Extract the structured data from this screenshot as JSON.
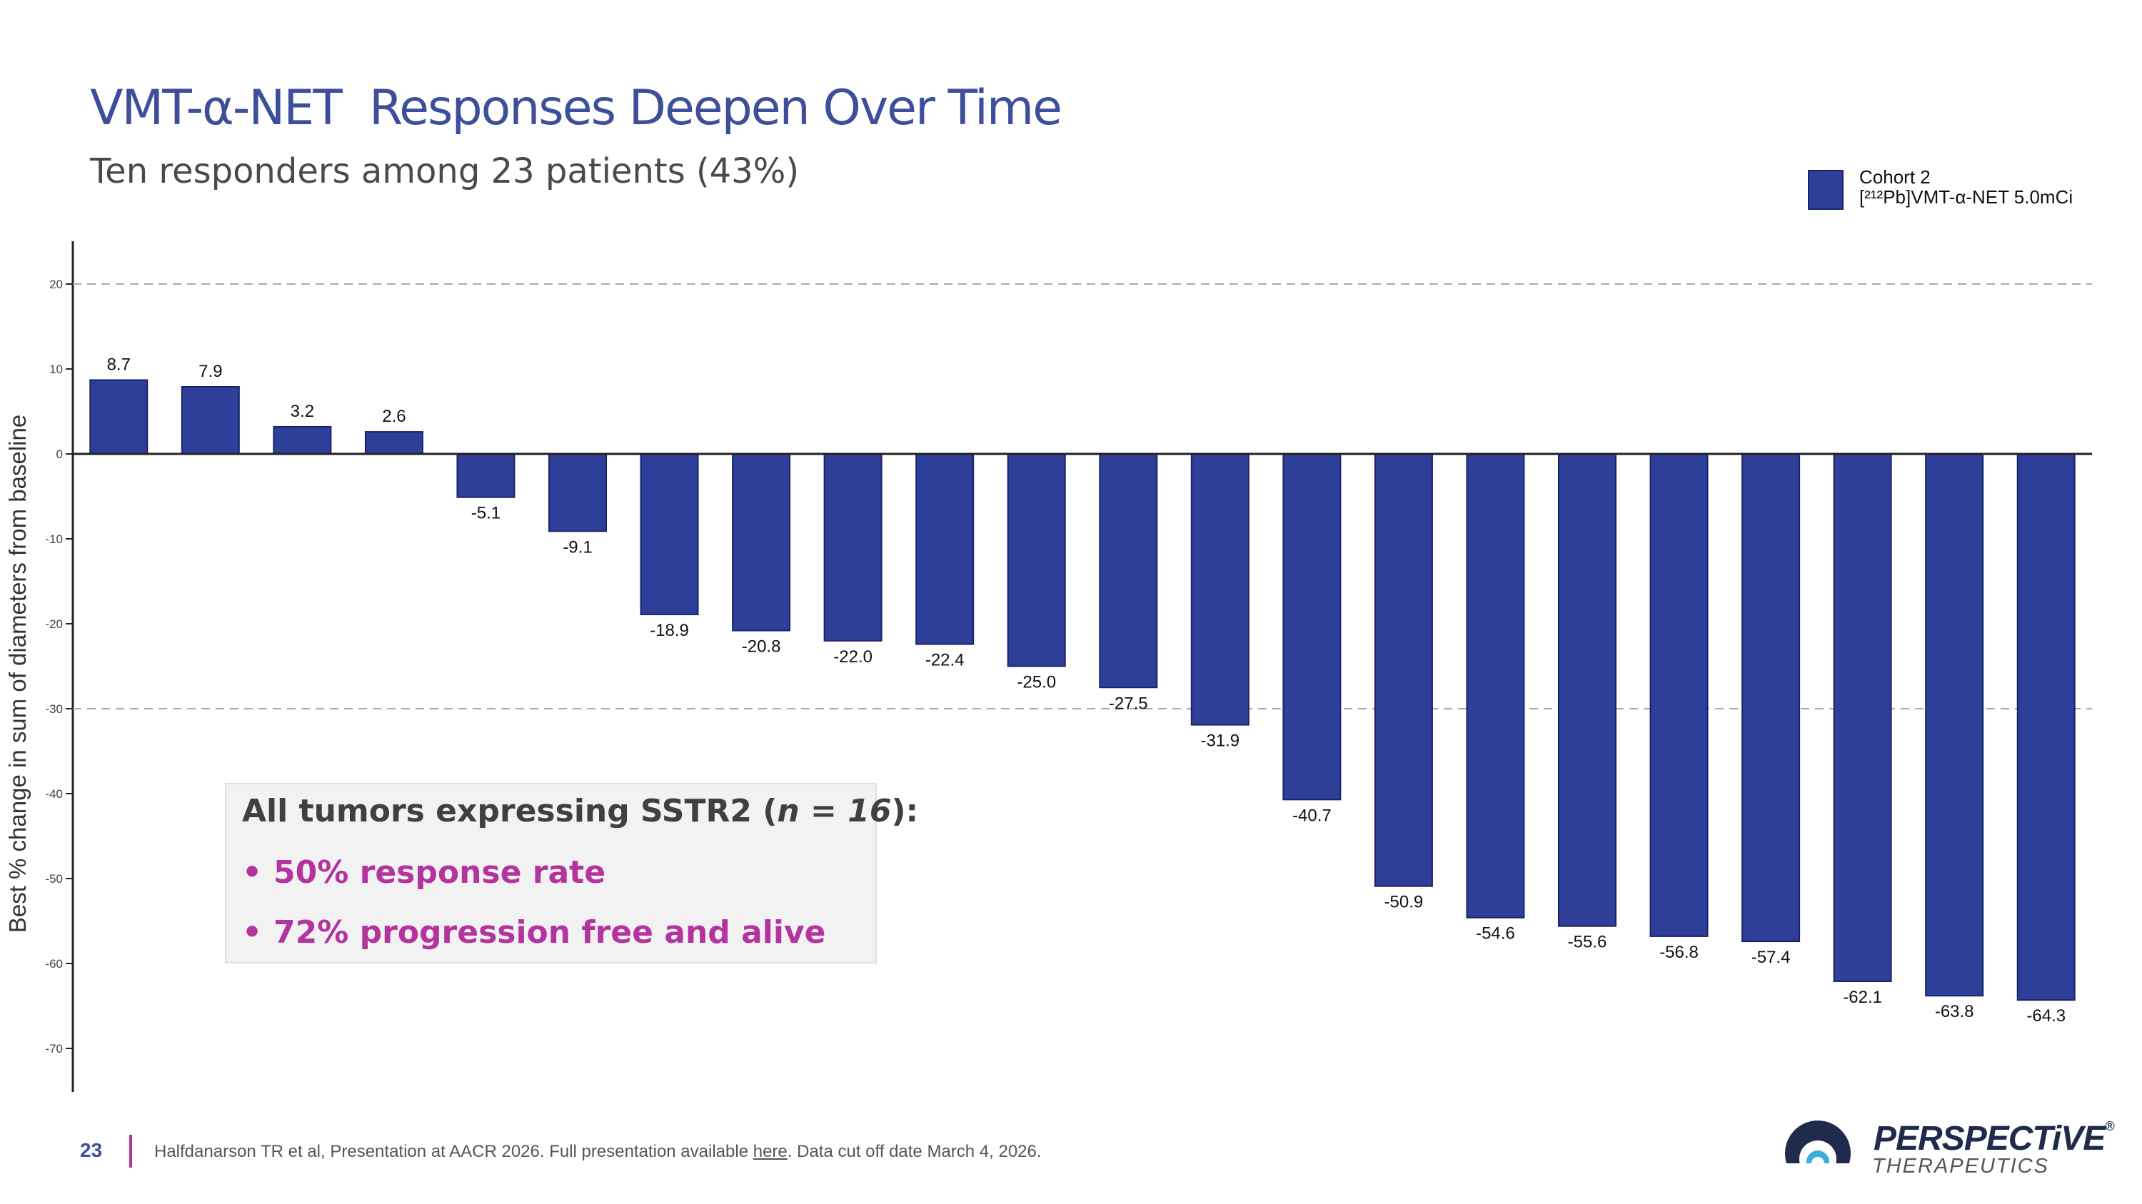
{
  "header": {
    "title": "VMT-α-NET  Responses Deepen Over Time",
    "subtitle": "Ten responders among 23 patients (43%)"
  },
  "legend": {
    "line1": "Cohort 2",
    "line2": "[²¹²Pb]VMT-α-NET 5.0mCi",
    "color": "#2e3f9a"
  },
  "callout": {
    "heading_prefix": "All tumors expressing SSTR2 (",
    "heading_n": "n = 16",
    "heading_suffix": "):",
    "bullet": "•",
    "items": [
      "50% response rate",
      "72% progression free and alive"
    ],
    "heading_color": "#404040",
    "item_color": "#b3339f"
  },
  "footer": {
    "page_number": "23",
    "citation_prefix": "Halfdanarson TR et al, Presentation at AACR 2026. Full presentation available ",
    "citation_link": "here",
    "citation_suffix": ". Data cut off date March 4, 2026."
  },
  "logo": {
    "name": "PERSPECTiVE",
    "reg": "®",
    "sub": "THERAPEUTICS"
  },
  "chart_data": {
    "type": "bar",
    "title": "",
    "xlabel": "",
    "ylabel": "Best % change in sum of diameters from baseline",
    "ylim": [
      -70,
      20
    ],
    "yticks": [
      20,
      10,
      0,
      -10,
      -20,
      -30,
      -40,
      -50,
      -60,
      -70
    ],
    "reference_lines": [
      20,
      -30
    ],
    "grid": false,
    "legend_position": "top-right",
    "series": [
      {
        "name": "Cohort 2 [²¹²Pb]VMT-α-NET 5.0mCi",
        "color": "#2e3f9a",
        "values": [
          8.7,
          7.9,
          3.2,
          2.6,
          -5.1,
          -9.1,
          -18.9,
          -20.8,
          -22.0,
          -22.4,
          -25.0,
          -27.5,
          -31.9,
          -40.7,
          -50.9,
          -54.6,
          -55.6,
          -56.8,
          -57.4,
          -62.1,
          -63.8,
          -64.3
        ]
      }
    ],
    "data_labels": [
      "8.7",
      "7.9",
      "3.2",
      "2.6",
      "-5.1",
      "-9.1",
      "-18.9",
      "-20.8",
      "-22.0",
      "-22.4",
      "-25.0",
      "-27.5",
      "-31.9",
      "-40.7",
      "-50.9",
      "-54.6",
      "-55.6",
      "-56.8",
      "-57.4",
      "-62.1",
      "-63.8",
      "-64.3"
    ]
  }
}
